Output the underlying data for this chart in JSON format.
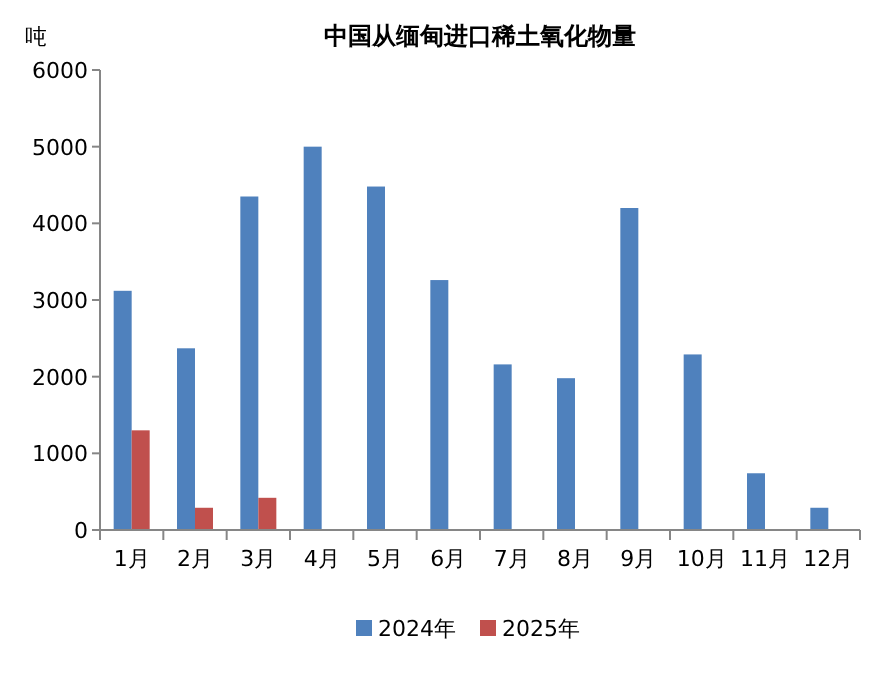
{
  "chart_data": {
    "type": "bar",
    "title": "中国从缅甸进口稀土氧化物量",
    "ylabel": "吨",
    "categories": [
      "1月",
      "2月",
      "3月",
      "4月",
      "5月",
      "6月",
      "7月",
      "8月",
      "9月",
      "10月",
      "11月",
      "12月"
    ],
    "series": [
      {
        "name": "2024年",
        "color": "#4f81bd",
        "values": [
          3120,
          2370,
          4350,
          5000,
          4480,
          3260,
          2160,
          1980,
          4200,
          2290,
          740,
          290
        ]
      },
      {
        "name": "2025年",
        "color": "#c0504d",
        "values": [
          1300,
          290,
          420,
          null,
          null,
          null,
          null,
          null,
          null,
          null,
          null,
          null
        ]
      }
    ],
    "ylim": [
      0,
      6000
    ],
    "yticks": [
      0,
      1000,
      2000,
      3000,
      4000,
      5000,
      6000
    ],
    "grid": false,
    "legend": "bottom"
  }
}
